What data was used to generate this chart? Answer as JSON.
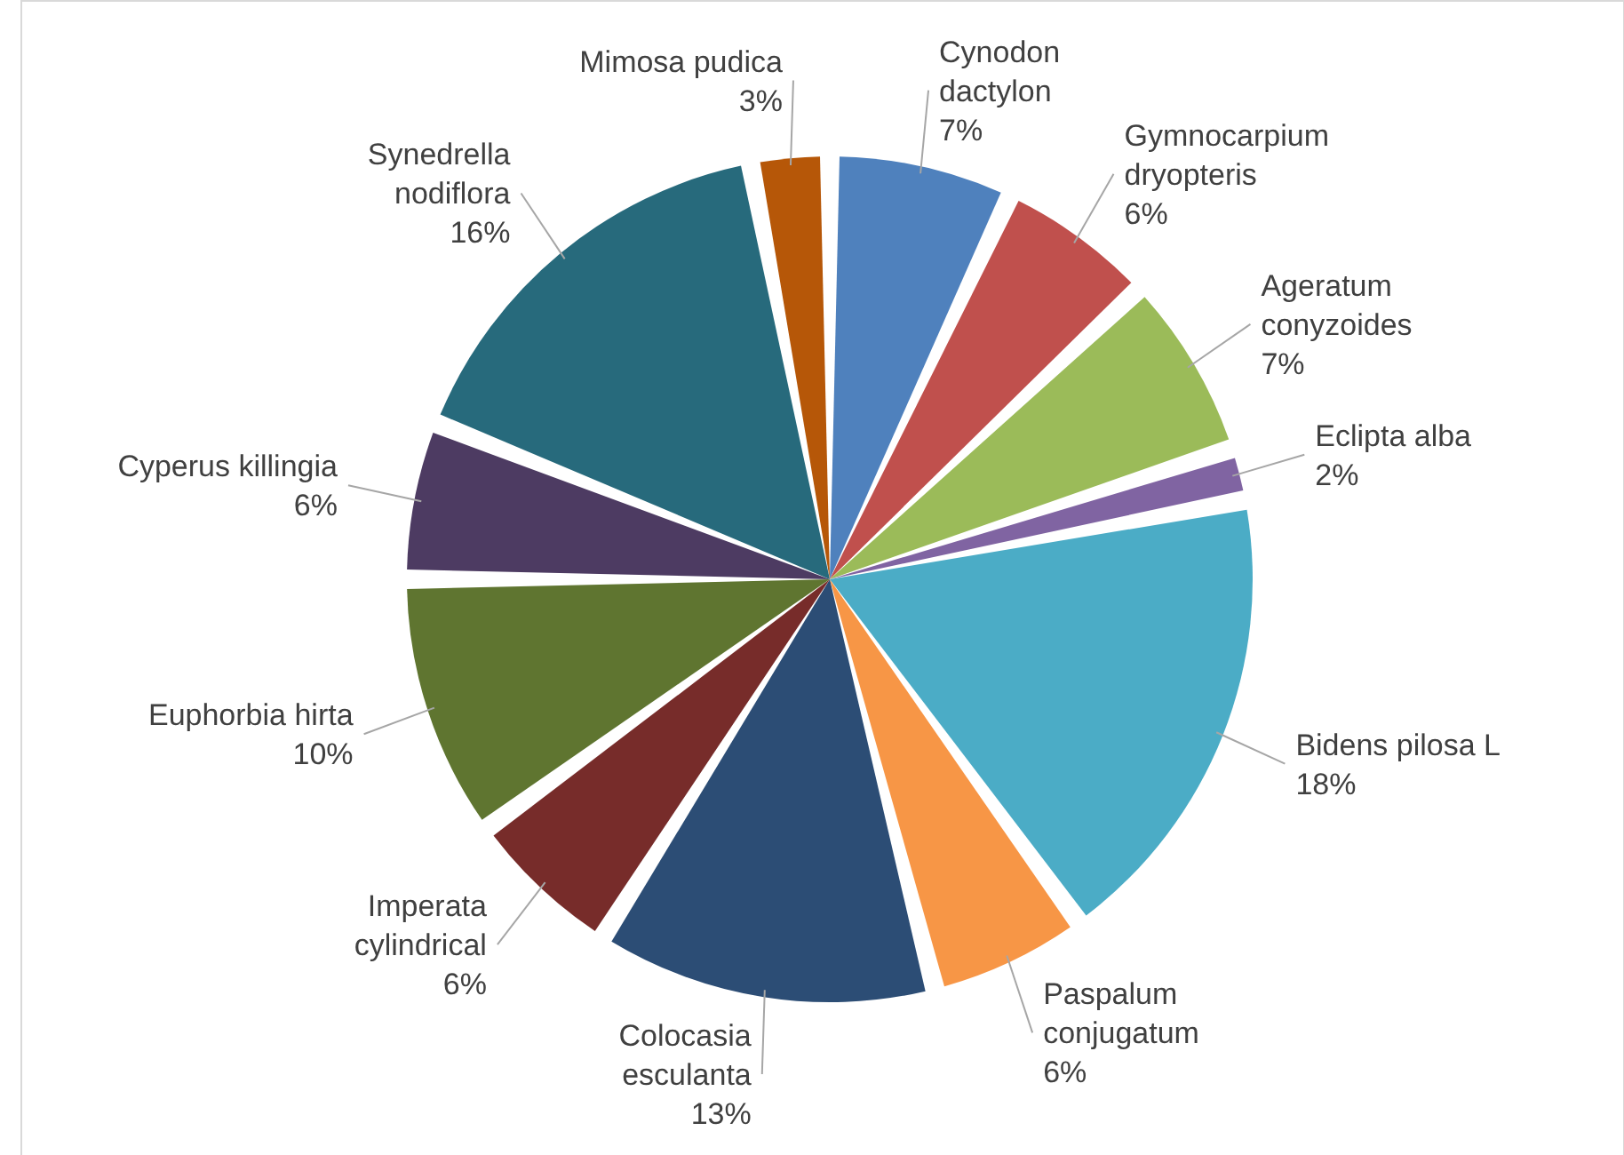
{
  "chart_data": {
    "type": "pie",
    "categories": [
      "Cynodon dactylon",
      "Gymnocarpium dryopteris",
      "Ageratum conyzoides",
      "Eclipta alba",
      "Bidens pilosa L",
      "Paspalum conjugatum",
      "Colocasia esculanta",
      "Imperata cylindrical",
      "Euphorbia hirta",
      "Cyperus killingia",
      "Synedrella nodiflora",
      "Mimosa pudica"
    ],
    "values": [
      7,
      6,
      7,
      2,
      18,
      6,
      13,
      6,
      10,
      6,
      16,
      3
    ],
    "colors": [
      "#4f81bd",
      "#c0504d",
      "#9bbb59",
      "#8064a2",
      "#4bacc6",
      "#f79646",
      "#2c4d75",
      "#772c2a",
      "#5f7530",
      "#4d3b62",
      "#276a7c",
      "#b65708"
    ],
    "value_labels": [
      "7%",
      "6%",
      "7%",
      "2%",
      "18%",
      "6%",
      "13%",
      "6%",
      "10%",
      "6%",
      "16%",
      "3%"
    ]
  }
}
